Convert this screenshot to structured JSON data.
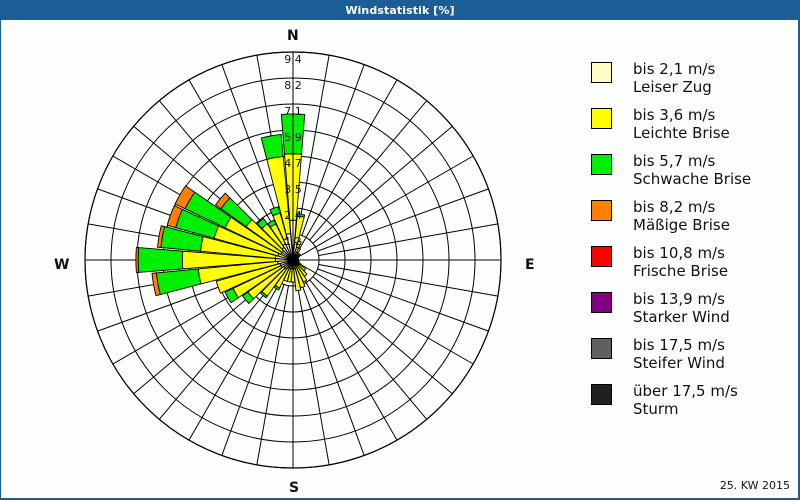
{
  "window": {
    "title": "Windstatistik [%]"
  },
  "compass": {
    "n": "N",
    "e": "E",
    "s": "S",
    "w": "W"
  },
  "footer": {
    "week": "25. KW 2015"
  },
  "legend": [
    {
      "range": "bis 2,1 m/s",
      "name": "Leiser Zug",
      "color": "#fffcc8"
    },
    {
      "range": "bis 3,6 m/s",
      "name": "Leichte Brise",
      "color": "#ffff00"
    },
    {
      "range": "bis 5,7 m/s",
      "name": "Schwache Brise",
      "color": "#00ee00"
    },
    {
      "range": "bis 8,2 m/s",
      "name": "Mäßige Brise",
      "color": "#ff8000"
    },
    {
      "range": "bis 10,8 m/s",
      "name": "Frische Brise",
      "color": "#ff0000"
    },
    {
      "range": "bis 13,9 m/s",
      "name": "Starker Wind",
      "color": "#800080"
    },
    {
      "range": "bis 17,5 m/s",
      "name": "Steifer Wind",
      "color": "#606060"
    },
    {
      "range": "über 17,5 m/s",
      "name": "Sturm",
      "color": "#202020"
    }
  ],
  "chart_data": {
    "type": "windrose",
    "title": "Windstatistik [%]",
    "subtitle": "25. KW 2015",
    "radial_ticks": [
      "1,2",
      "2,4",
      "3,5",
      "4,7",
      "5,9",
      "7,1",
      "8,2",
      "9,4"
    ],
    "radial_max": 9.4,
    "directions_deg": [
      0,
      10,
      20,
      30,
      40,
      50,
      60,
      70,
      80,
      90,
      100,
      110,
      120,
      130,
      140,
      150,
      160,
      170,
      180,
      190,
      200,
      210,
      220,
      230,
      240,
      250,
      260,
      270,
      280,
      290,
      300,
      310,
      320,
      330,
      340,
      350
    ],
    "series": [
      {
        "name": "bis 2,1 m/s",
        "values": [
          1.8,
          0.8,
          0.6,
          0.4,
          0.3,
          0.3,
          0.2,
          0.2,
          0.2,
          0.2,
          0.2,
          0.2,
          0.2,
          0.3,
          0.3,
          0.3,
          0.3,
          0.4,
          0.4,
          0.4,
          0.4,
          0.4,
          0.5,
          0.5,
          0.6,
          0.6,
          0.7,
          0.8,
          0.8,
          0.7,
          0.6,
          0.6,
          0.7,
          0.8,
          1.0,
          1.2
        ]
      },
      {
        "name": "bis 3,6 m/s",
        "values": [
          3.0,
          1.2,
          0.3,
          0.2,
          0.1,
          0.1,
          0.1,
          0.0,
          0.0,
          0.0,
          0.0,
          0.1,
          0.2,
          0.4,
          0.6,
          0.8,
          1.0,
          1.0,
          0.6,
          0.6,
          0.6,
          1.0,
          1.5,
          2.0,
          2.4,
          3.0,
          3.6,
          4.2,
          3.4,
          3.0,
          2.8,
          2.0,
          1.3,
          1.0,
          1.2,
          3.5
        ]
      },
      {
        "name": "bis 5,7 m/s",
        "values": [
          1.8,
          0.1,
          0.0,
          0.0,
          0.0,
          0.0,
          0.0,
          0.0,
          0.0,
          0.0,
          0.0,
          0.0,
          0.0,
          0.0,
          0.0,
          0.0,
          0.0,
          0.0,
          0.0,
          0.0,
          0.0,
          0.1,
          0.1,
          0.3,
          0.4,
          0.0,
          1.9,
          2.0,
          1.8,
          1.8,
          2.0,
          1.4,
          0.3,
          0.2,
          0.3,
          1.0
        ]
      },
      {
        "name": "bis 8,2 m/s",
        "values": [
          0,
          0,
          0,
          0,
          0,
          0,
          0,
          0,
          0,
          0,
          0,
          0,
          0,
          0,
          0,
          0,
          0,
          0,
          0,
          0,
          0,
          0,
          0,
          0,
          0,
          0,
          0.2,
          0.1,
          0.15,
          0.4,
          0.5,
          0.3,
          0.0,
          0.0,
          0.0,
          0.0
        ]
      },
      {
        "name": "bis 10,8 m/s",
        "values": [
          0,
          0,
          0,
          0,
          0,
          0,
          0,
          0,
          0,
          0,
          0,
          0,
          0,
          0,
          0,
          0,
          0,
          0,
          0,
          0,
          0,
          0,
          0,
          0,
          0,
          0,
          0,
          0,
          0,
          0,
          0,
          0,
          0,
          0,
          0,
          0
        ]
      },
      {
        "name": "bis 13,9 m/s",
        "values": [
          0,
          0,
          0,
          0,
          0,
          0,
          0,
          0,
          0,
          0,
          0,
          0,
          0,
          0,
          0,
          0,
          0,
          0,
          0,
          0,
          0,
          0,
          0,
          0,
          0,
          0,
          0,
          0,
          0,
          0,
          0,
          0,
          0,
          0,
          0,
          0
        ]
      },
      {
        "name": "bis 17,5 m/s",
        "values": [
          0,
          0,
          0,
          0,
          0,
          0,
          0,
          0,
          0,
          0,
          0,
          0,
          0,
          0,
          0,
          0,
          0,
          0,
          0,
          0,
          0,
          0,
          0,
          0,
          0,
          0,
          0,
          0,
          0,
          0,
          0,
          0,
          0,
          0,
          0,
          0
        ]
      },
      {
        "name": "über 17,5 m/s",
        "values": [
          0,
          0,
          0,
          0,
          0,
          0,
          0,
          0,
          0,
          0,
          0,
          0,
          0,
          0,
          0,
          0,
          0,
          0,
          0,
          0,
          0,
          0,
          0,
          0,
          0,
          0,
          0,
          0,
          0,
          0,
          0,
          0,
          0,
          0,
          0,
          0
        ]
      }
    ]
  }
}
